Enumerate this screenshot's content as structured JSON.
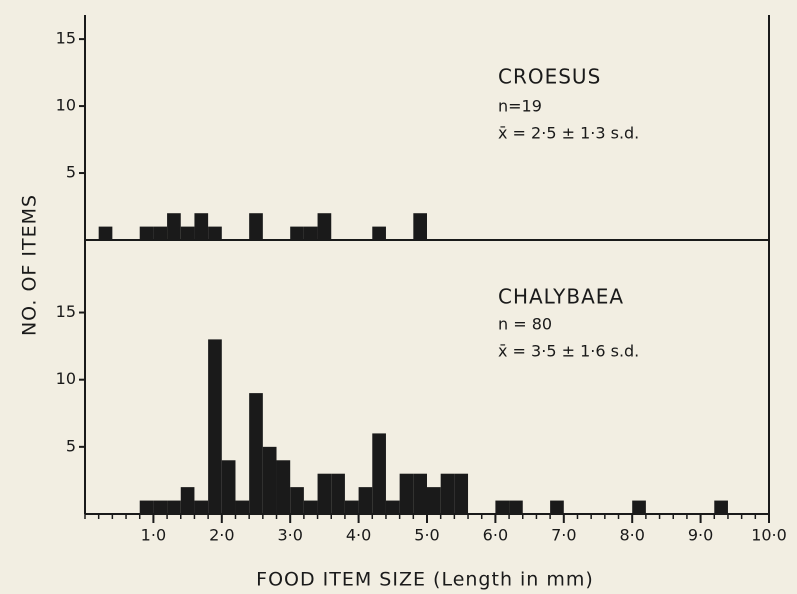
{
  "chart_data": [
    {
      "type": "histogram",
      "title": "CROESUS",
      "annotations": [
        "n=19",
        "x̄ = 2·5 ± 1·3  s.d."
      ],
      "ylabel": "NO. OF ITEMS",
      "color": "#1a1a1a",
      "bins": [
        0.0,
        0.2,
        0.4,
        0.6,
        0.8,
        1.0,
        1.2,
        1.4,
        1.6,
        1.8,
        2.0,
        2.2,
        2.4,
        2.6,
        2.8,
        3.0,
        3.2,
        3.4,
        3.6,
        3.8,
        4.0,
        4.2,
        4.4,
        4.6,
        4.8,
        5.0,
        5.2,
        5.4,
        5.6,
        5.8,
        6.0,
        6.2,
        6.4,
        6.6,
        6.8,
        7.0,
        7.2,
        7.4,
        7.6,
        7.8,
        8.0,
        8.2,
        8.4,
        8.6,
        8.8,
        9.0,
        9.2,
        9.4,
        9.6,
        9.8,
        10.0
      ],
      "counts": [
        0,
        1,
        0,
        0,
        1,
        1,
        2,
        1,
        2,
        1,
        0,
        0,
        2,
        0,
        0,
        1,
        1,
        2,
        0,
        0,
        0,
        1,
        0,
        0,
        2,
        0,
        0,
        0,
        0,
        0,
        0,
        0,
        0,
        0,
        0,
        0,
        0,
        0,
        0,
        0,
        0,
        0,
        0,
        0,
        0,
        0,
        0,
        0,
        0,
        0
      ],
      "xlim": [
        0,
        10
      ],
      "ylim": [
        0,
        16.8
      ],
      "yticks": [
        5,
        10,
        15
      ]
    },
    {
      "type": "histogram",
      "title": "CHALYBAEA",
      "annotations": [
        "n = 80",
        "x̄ = 3·5 ± 1·6  s.d."
      ],
      "xlabel": "FOOD ITEM SIZE (Length in mm)",
      "color": "#1a1a1a",
      "bins": [
        0.0,
        0.2,
        0.4,
        0.6,
        0.8,
        1.0,
        1.2,
        1.4,
        1.6,
        1.8,
        2.0,
        2.2,
        2.4,
        2.6,
        2.8,
        3.0,
        3.2,
        3.4,
        3.6,
        3.8,
        4.0,
        4.2,
        4.4,
        4.6,
        4.8,
        5.0,
        5.2,
        5.4,
        5.6,
        5.8,
        6.0,
        6.2,
        6.4,
        6.6,
        6.8,
        7.0,
        7.2,
        7.4,
        7.6,
        7.8,
        8.0,
        8.2,
        8.4,
        8.6,
        8.8,
        9.0,
        9.2,
        9.4,
        9.6,
        9.8,
        10.0
      ],
      "counts": [
        0,
        0,
        0,
        0,
        1,
        1,
        1,
        2,
        1,
        13,
        4,
        1,
        9,
        5,
        4,
        2,
        1,
        3,
        3,
        1,
        2,
        6,
        1,
        3,
        3,
        2,
        3,
        3,
        0,
        0,
        1,
        1,
        0,
        0,
        1,
        0,
        0,
        0,
        0,
        0,
        1,
        0,
        0,
        0,
        0,
        0,
        1,
        0,
        0,
        0
      ],
      "xlim": [
        0,
        10
      ],
      "ylim": [
        0,
        20.4
      ],
      "yticks": [
        5,
        10,
        15
      ],
      "xticks": [
        {
          "value": 1,
          "label": "1·0"
        },
        {
          "value": 2,
          "label": "2·0"
        },
        {
          "value": 3,
          "label": "3·0"
        },
        {
          "value": 4,
          "label": "4·0"
        },
        {
          "value": 5,
          "label": "5·0"
        },
        {
          "value": 6,
          "label": "6·0"
        },
        {
          "value": 7,
          "label": "7·0"
        },
        {
          "value": 8,
          "label": "8·0"
        },
        {
          "value": 9,
          "label": "9·0"
        },
        {
          "value": 10,
          "label": "10·0"
        }
      ]
    }
  ]
}
